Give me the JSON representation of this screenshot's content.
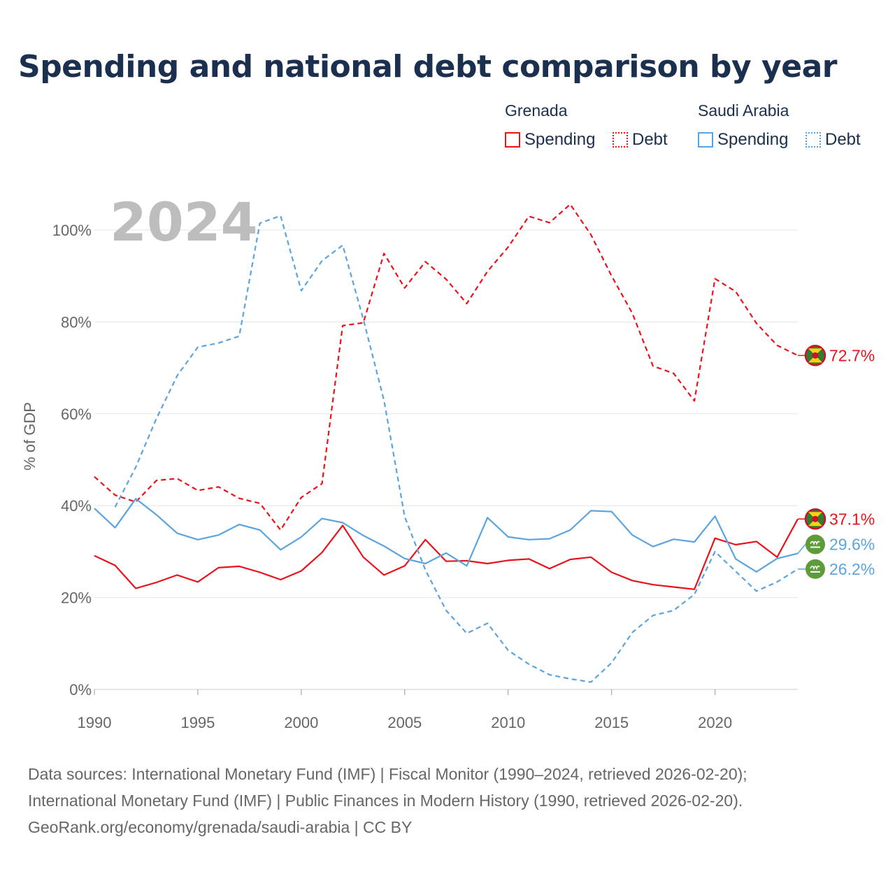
{
  "title": "Spending and national debt comparison by year",
  "legend": {
    "groups": [
      {
        "country": "Grenada",
        "items": [
          {
            "label": "Spending",
            "style": "solid"
          },
          {
            "label": "Debt",
            "style": "dotted"
          }
        ],
        "color": "#e8131b"
      },
      {
        "country": "Saudi Arabia",
        "items": [
          {
            "label": "Spending",
            "style": "solid"
          },
          {
            "label": "Debt",
            "style": "dotted"
          }
        ],
        "color": "#5ba4e0"
      }
    ]
  },
  "year_label": "2024",
  "footer": {
    "line1": "Data sources: International Monetary Fund (IMF) | Fiscal Monitor (1990–2024, retrieved 2026-02-20);",
    "line2": "International Monetary Fund (IMF) | Public Finances in Modern History (1990, retrieved 2026-02-20).",
    "line3": "GeoRank.org/economy/grenada/saudi-arabia | CC BY"
  },
  "chart_data": {
    "type": "line",
    "title": "Spending and national debt comparison by year",
    "ylabel": "% of GDP",
    "xlabel": "",
    "xlim": [
      1990,
      2024
    ],
    "ylim": [
      0,
      110
    ],
    "x_ticks": [
      1990,
      1995,
      2000,
      2005,
      2010,
      2015,
      2020
    ],
    "y_ticks": [
      0,
      20,
      40,
      60,
      80,
      100
    ],
    "y_tick_labels": [
      "0%",
      "20%",
      "40%",
      "60%",
      "80%",
      "100%"
    ],
    "grid": true,
    "series": [
      {
        "name": "Grenada Spending",
        "country": "Grenada",
        "color": "#e8131b",
        "dash": "solid",
        "start": 1990,
        "values": [
          29.1,
          27.0,
          22.0,
          23.3,
          24.9,
          23.4,
          26.5,
          26.8,
          25.5,
          23.9,
          25.8,
          29.8,
          35.7,
          28.8,
          24.9,
          26.9,
          32.6,
          27.9,
          28.0,
          27.4,
          28.1,
          28.4,
          26.3,
          28.3,
          28.8,
          25.5,
          23.7,
          22.8,
          22.3,
          21.8,
          32.9,
          31.5,
          32.2,
          28.8,
          37.1
        ],
        "end_label": "37.1%"
      },
      {
        "name": "Grenada Debt",
        "country": "Grenada",
        "color": "#e8131b",
        "dash": "dashed",
        "start": 1990,
        "values": [
          46.3,
          42.3,
          40.8,
          45.5,
          45.9,
          43.3,
          44.1,
          41.6,
          40.5,
          34.7,
          41.8,
          44.8,
          79.2,
          79.8,
          94.9,
          87.4,
          93.1,
          89.3,
          84.0,
          91.0,
          96.3,
          103.0,
          101.6,
          105.6,
          99.0,
          90.0,
          81.9,
          70.4,
          68.8,
          62.8,
          89.4,
          86.6,
          79.7,
          74.9,
          72.7
        ],
        "end_label": "72.7%"
      },
      {
        "name": "Saudi Arabia Spending",
        "country": "Saudi Arabia",
        "color": "#5ba4e0",
        "dash": "solid",
        "start": 1990,
        "values": [
          39.4,
          35.2,
          41.5,
          38.0,
          34.0,
          32.6,
          33.6,
          35.9,
          34.7,
          30.4,
          33.2,
          37.2,
          36.3,
          33.5,
          31.2,
          28.5,
          27.4,
          29.7,
          26.9,
          37.4,
          33.2,
          32.6,
          32.8,
          34.7,
          38.9,
          38.7,
          33.6,
          31.1,
          32.7,
          32.1,
          37.7,
          28.4,
          25.6,
          28.5,
          29.6
        ],
        "end_label": "29.6%"
      },
      {
        "name": "Saudi Arabia Debt",
        "country": "Saudi Arabia",
        "color": "#5ba4e0",
        "dash": "dashed",
        "start": 1991,
        "values": [
          39.7,
          48.4,
          59.0,
          68.3,
          74.5,
          75.4,
          76.9,
          101.5,
          103.1,
          86.8,
          93.3,
          96.7,
          80.6,
          62.9,
          37.6,
          26.0,
          17.2,
          12.2,
          14.4,
          8.5,
          5.5,
          3.2,
          2.3,
          1.6,
          5.8,
          12.4,
          16.1,
          17.2,
          20.7,
          30.0,
          25.7,
          21.4,
          23.4,
          26.2
        ],
        "end_label": "26.2%"
      }
    ]
  }
}
